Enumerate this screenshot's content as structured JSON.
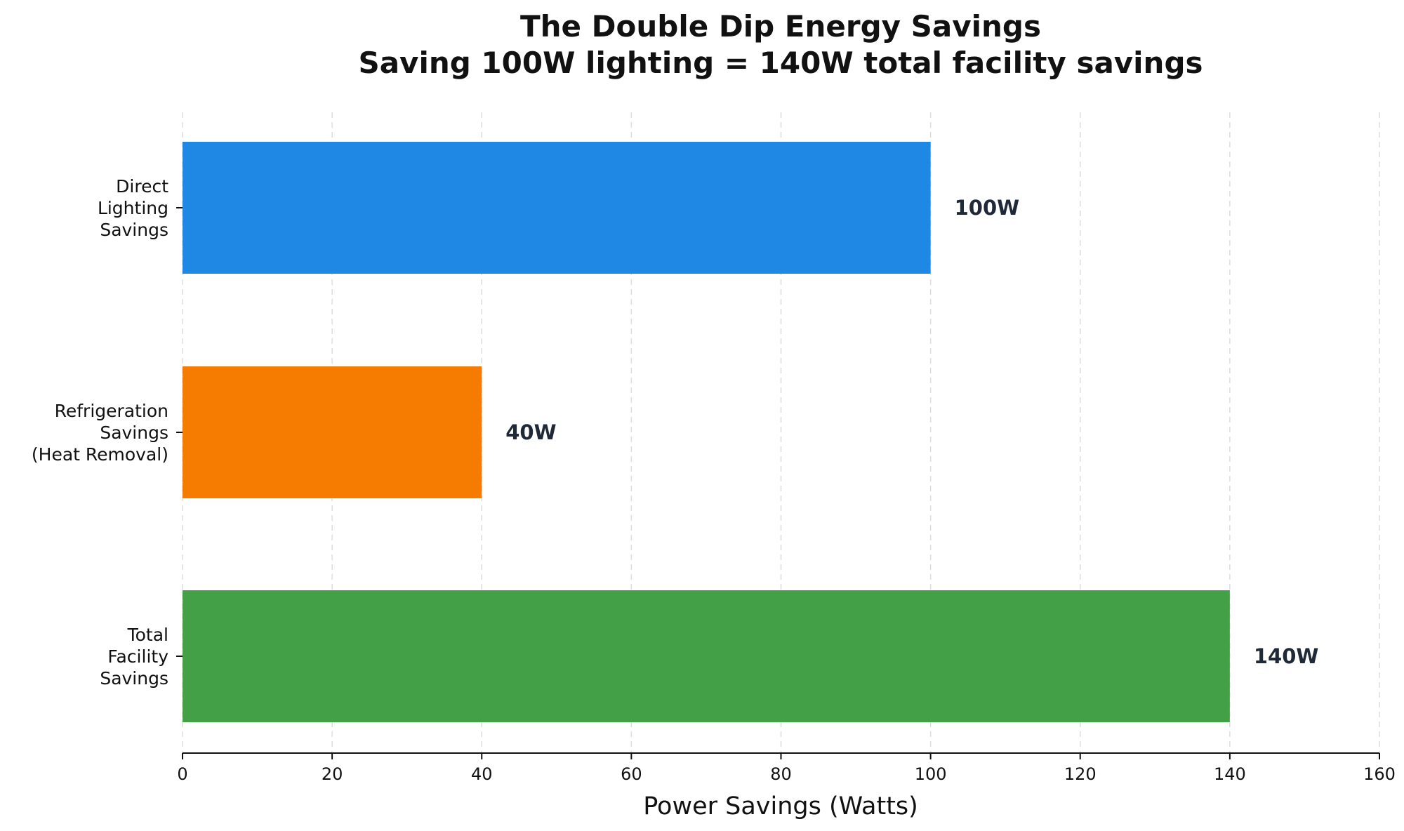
{
  "chart_data": {
    "type": "bar",
    "orientation": "horizontal",
    "title_lines": [
      "The Double Dip Energy Savings",
      "Saving 100W lighting = 140W total facility savings"
    ],
    "xlabel": "Power Savings (Watts)",
    "ylabel": "",
    "xlim": [
      0,
      160
    ],
    "xticks": [
      0,
      20,
      40,
      60,
      80,
      100,
      120,
      140,
      160
    ],
    "grid": "vertical dashed",
    "categories": [
      {
        "label_lines": [
          "Direct",
          "Lighting",
          "Savings"
        ],
        "value": 100,
        "value_label": "100W",
        "color": "#1f88e5"
      },
      {
        "label_lines": [
          "Refrigeration",
          "Savings",
          "(Heat Removal)"
        ],
        "value": 40,
        "value_label": "40W",
        "color": "#f57c00"
      },
      {
        "label_lines": [
          "Total",
          "Facility",
          "Savings"
        ],
        "value": 140,
        "value_label": "140W",
        "color": "#43a047"
      }
    ]
  }
}
